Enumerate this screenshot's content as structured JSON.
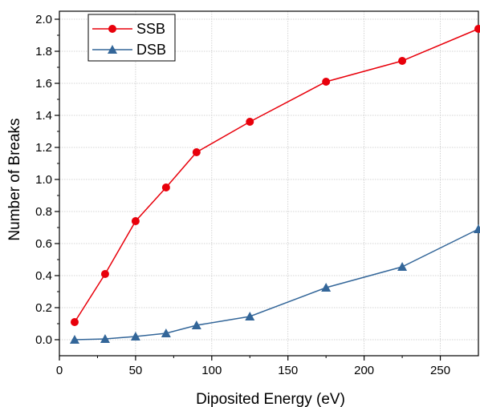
{
  "chart_data": {
    "type": "line",
    "xlabel": "Diposited Energy (eV)",
    "ylabel": "Number of Breaks",
    "xlim": [
      0,
      275
    ],
    "ylim": [
      -0.1,
      2.05
    ],
    "x_ticks": [
      0,
      50,
      100,
      150,
      200,
      250
    ],
    "y_ticks": [
      0.0,
      0.2,
      0.4,
      0.6,
      0.8,
      1.0,
      1.2,
      1.4,
      1.6,
      1.8,
      2.0
    ],
    "x_tick_labels": [
      "0",
      "50",
      "100",
      "150",
      "200",
      "250"
    ],
    "y_tick_labels": [
      "0.0",
      "0.2",
      "0.4",
      "0.6",
      "0.8",
      "1.0",
      "1.2",
      "1.4",
      "1.6",
      "1.8",
      "2.0"
    ],
    "grid": true,
    "legend_position": "top-left",
    "x": [
      10,
      30,
      50,
      70,
      90,
      125,
      175,
      225,
      275
    ],
    "series": [
      {
        "name": "SSB",
        "color": "#e8000b",
        "marker": "circle",
        "values": [
          0.11,
          0.41,
          0.74,
          0.95,
          1.17,
          1.36,
          1.61,
          1.74,
          1.94
        ]
      },
      {
        "name": "DSB",
        "color": "#336699",
        "marker": "triangle",
        "values": [
          0.0,
          0.005,
          0.02,
          0.04,
          0.09,
          0.145,
          0.325,
          0.455,
          0.69
        ]
      }
    ]
  }
}
